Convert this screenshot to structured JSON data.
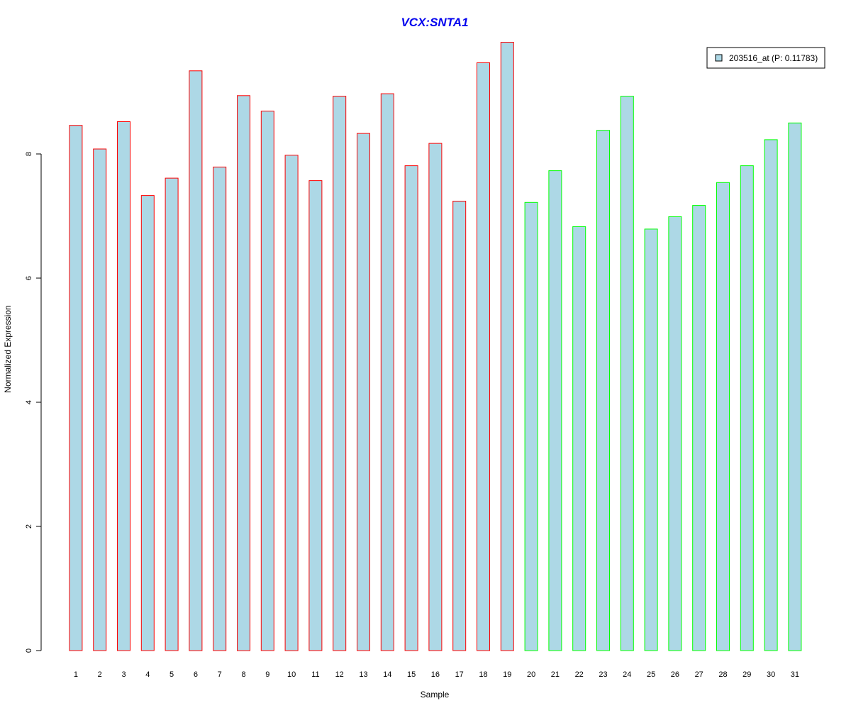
{
  "chart_data": {
    "type": "bar",
    "title": "VCX:SNTA1",
    "xlabel": "Sample",
    "ylabel": "Normalized Expression",
    "categories": [
      "1",
      "2",
      "3",
      "4",
      "5",
      "6",
      "7",
      "8",
      "9",
      "10",
      "11",
      "12",
      "13",
      "14",
      "15",
      "16",
      "17",
      "18",
      "19",
      "20",
      "21",
      "22",
      "23",
      "24",
      "25",
      "26",
      "27",
      "28",
      "29",
      "30",
      "31"
    ],
    "series": [
      {
        "name": "203516_at (P: 0.11783)",
        "values": [
          8.46,
          8.08,
          8.52,
          7.33,
          7.61,
          9.34,
          7.79,
          8.94,
          8.69,
          7.98,
          7.57,
          8.93,
          8.33,
          8.97,
          7.81,
          8.17,
          7.24,
          9.47,
          9.8,
          7.22,
          7.73,
          6.83,
          8.38,
          8.93,
          6.79,
          6.99,
          7.17,
          7.54,
          7.81,
          8.23,
          8.5
        ]
      }
    ],
    "yticks": [
      "0",
      "2",
      "4",
      "6",
      "8"
    ],
    "ylim": [
      0,
      10
    ],
    "grid": false,
    "legend_position": "top-right",
    "colors": {
      "bar_fill": "#add8e6",
      "group1_border": "#ff0000",
      "group2_border": "#00ff00",
      "title": "#0000ee",
      "axis": "#000000"
    },
    "group1_count": 19
  }
}
